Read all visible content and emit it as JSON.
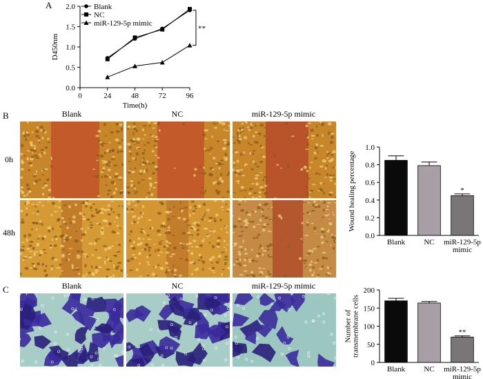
{
  "panels": {
    "a": {
      "letter": "A"
    },
    "b": {
      "letter": "B"
    },
    "c": {
      "letter": "C"
    }
  },
  "column_titles": [
    "Blank",
    "NC",
    "miR-129-5p mimic"
  ],
  "row_labels": [
    "0h",
    "48h"
  ],
  "colors": {
    "wound_cells": "#c8862a",
    "wound_gap": "#c35a2a",
    "crystal_violet": "#3b2a9c",
    "membrane_bg": "#9cc7c0",
    "bar_blank": "#0a0a0a",
    "bar_nc": "#a79ea6",
    "bar_mimic": "#7a7678"
  },
  "chart_data": [
    {
      "type": "line",
      "xlabel": "Time(h)",
      "ylabel": "D450nm",
      "x": [
        24,
        48,
        72,
        96
      ],
      "xticks": [
        0,
        24,
        48,
        72,
        96
      ],
      "ylim": [
        0.0,
        2.0
      ],
      "yticks": [
        "0.0",
        "0.5",
        "1.0",
        "1.5",
        "2.0"
      ],
      "series": [
        {
          "name": "Blank",
          "marker": "circle",
          "values": [
            0.73,
            1.2,
            1.45,
            1.9
          ]
        },
        {
          "name": "NC",
          "marker": "square",
          "values": [
            0.7,
            1.23,
            1.43,
            1.93
          ]
        },
        {
          "name": "miR-129-5p mimic",
          "marker": "triangle",
          "values": [
            0.26,
            0.53,
            0.62,
            1.04
          ]
        }
      ],
      "significance": "**",
      "legend": "top-left"
    },
    {
      "type": "bar",
      "ylabel": "Wound healing percentage",
      "categories": [
        "Blank",
        "NC",
        "miR-129-5p mimic"
      ],
      "values": [
        0.85,
        0.79,
        0.45
      ],
      "errors": [
        0.05,
        0.04,
        0.02
      ],
      "ylim": [
        0.0,
        1.0
      ],
      "yticks": [
        "0.0",
        "0.2",
        "0.4",
        "0.6",
        "0.8",
        "1.0"
      ],
      "annotations": [
        "",
        "",
        "*"
      ]
    },
    {
      "type": "bar",
      "ylabel": "Number of transmembrane cells",
      "categories": [
        "Blank",
        "NC",
        "miR-129-5p mimic"
      ],
      "values": [
        170,
        164,
        70
      ],
      "errors": [
        7,
        4,
        3
      ],
      "ylim": [
        0,
        200
      ],
      "yticks": [
        "0",
        "50",
        "100",
        "150",
        "200"
      ],
      "annotations": [
        "",
        "",
        "**"
      ]
    }
  ]
}
